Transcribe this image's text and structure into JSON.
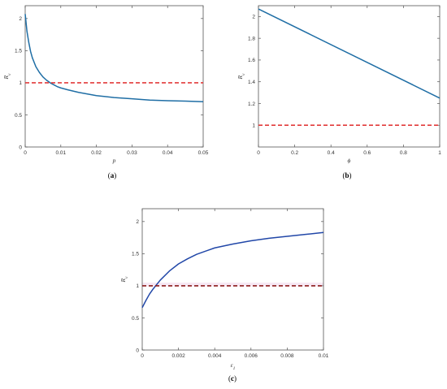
{
  "chart_data": [
    {
      "panel": "a",
      "caption": "(a)",
      "type": "line",
      "xlabel": "p",
      "ylabel": "R",
      "ylabel_sub": "v",
      "xlim": [
        0,
        0.05
      ],
      "ylim": [
        0,
        2.2
      ],
      "xticks": [
        0,
        0.01,
        0.02,
        0.03,
        0.04,
        0.05
      ],
      "xtick_labels": [
        "0",
        "0.01",
        "0.02",
        "0.03",
        "0.04",
        "0.05"
      ],
      "yticks": [
        0,
        0.5,
        1,
        1.5,
        2
      ],
      "ytick_labels": [
        "0",
        "0.5",
        "1",
        "1.5",
        "2"
      ],
      "series": [
        {
          "style": "solid",
          "color": "#1f6ea5",
          "x": [
            0,
            0.0005,
            0.001,
            0.0015,
            0.002,
            0.003,
            0.004,
            0.005,
            0.006,
            0.007,
            0.008,
            0.009,
            0.01,
            0.012,
            0.015,
            0.02,
            0.025,
            0.03,
            0.035,
            0.04,
            0.045,
            0.05
          ],
          "y": [
            2.07,
            1.8,
            1.63,
            1.49,
            1.39,
            1.25,
            1.16,
            1.09,
            1.04,
            1.0,
            0.97,
            0.94,
            0.92,
            0.89,
            0.85,
            0.8,
            0.77,
            0.75,
            0.73,
            0.72,
            0.715,
            0.705
          ]
        },
        {
          "style": "dashed",
          "color": "#e23b3b",
          "x": [
            0,
            0.05
          ],
          "y": [
            1,
            1
          ]
        }
      ],
      "grid": false
    },
    {
      "panel": "b",
      "caption": "(b)",
      "type": "line",
      "xlabel": "ϕ",
      "ylabel": "R",
      "ylabel_sub": "v",
      "xlim": [
        0,
        1
      ],
      "ylim": [
        0.8,
        2.1
      ],
      "xticks": [
        0,
        0.2,
        0.4,
        0.6,
        0.8,
        1
      ],
      "xtick_labels": [
        "0",
        "0.2",
        "0.4",
        "0.6",
        "0.8",
        "1"
      ],
      "yticks": [
        1,
        1.2,
        1.4,
        1.6,
        1.8,
        2
      ],
      "ytick_labels": [
        "1",
        "1.2",
        "1.4",
        "1.6",
        "1.8",
        "2"
      ],
      "series": [
        {
          "style": "solid",
          "color": "#1f6ea5",
          "x": [
            0,
            1
          ],
          "y": [
            2.07,
            1.25
          ]
        },
        {
          "style": "dashed",
          "color": "#e23b3b",
          "x": [
            0,
            1
          ],
          "y": [
            1,
            1
          ]
        }
      ],
      "grid": false
    },
    {
      "panel": "c",
      "caption": "(c)",
      "type": "line",
      "xlabel": "ε",
      "xlabel_sub": "1",
      "ylabel": "R",
      "ylabel_sub": "v",
      "xlim": [
        0,
        0.01
      ],
      "ylim": [
        0,
        2.2
      ],
      "xticks": [
        0,
        0.002,
        0.004,
        0.006,
        0.008,
        0.01
      ],
      "xtick_labels": [
        "0",
        "0.002",
        "0.004",
        "0.006",
        "0.008",
        "0.01"
      ],
      "yticks": [
        0,
        0.5,
        1,
        1.5,
        2
      ],
      "ytick_labels": [
        "0",
        "0.5",
        "1",
        "1.5",
        "2"
      ],
      "series": [
        {
          "style": "solid",
          "color": "#2147a8",
          "x": [
            0,
            0.0002,
            0.0004,
            0.0006,
            0.0008,
            0.001,
            0.0015,
            0.002,
            0.0025,
            0.003,
            0.004,
            0.005,
            0.006,
            0.007,
            0.008,
            0.009,
            0.01
          ],
          "y": [
            0.66,
            0.77,
            0.87,
            0.95,
            1.02,
            1.09,
            1.23,
            1.34,
            1.42,
            1.49,
            1.59,
            1.65,
            1.7,
            1.74,
            1.77,
            1.8,
            1.83
          ]
        },
        {
          "style": "dashed",
          "color": "#8b1a1a",
          "x": [
            0,
            0.01
          ],
          "y": [
            1,
            1
          ]
        }
      ],
      "grid": false
    }
  ]
}
